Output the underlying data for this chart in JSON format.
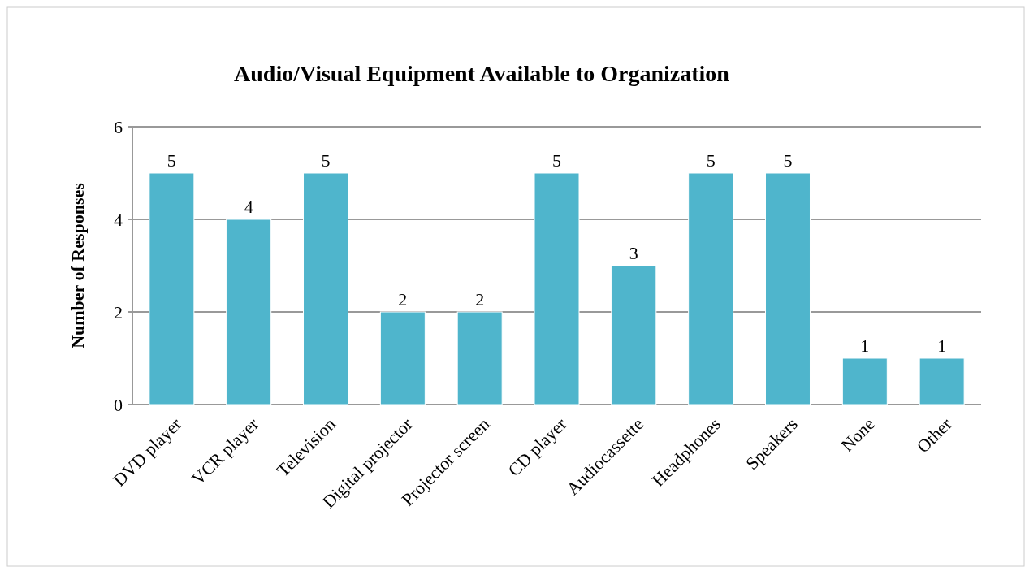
{
  "chart_data": {
    "type": "bar",
    "title": "Audio/Visual Equipment Available to Organization",
    "ylabel": "Number of Responses",
    "categories": [
      "DVD player",
      "VCR player",
      "Television",
      "Digital projector",
      "Projector screen",
      "CD player",
      "Audiocassette",
      "Headphones",
      "Speakers",
      "None",
      "Other"
    ],
    "values": [
      5,
      4,
      5,
      2,
      2,
      5,
      3,
      5,
      5,
      1,
      1
    ],
    "color": "#4fb5cc",
    "ylim": [
      0,
      6
    ],
    "yticks": [
      0,
      2,
      4,
      6
    ],
    "grid": "y",
    "data_labels": true
  }
}
